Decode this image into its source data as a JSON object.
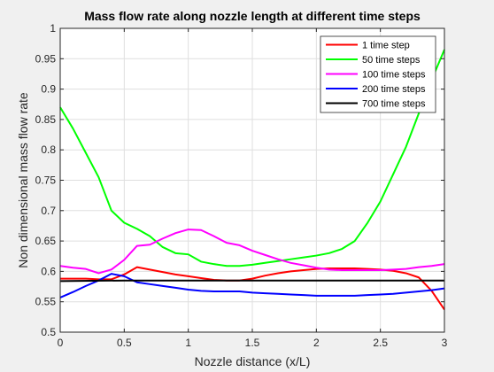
{
  "chart_data": {
    "type": "line",
    "title": "Mass flow rate along nozzle length at different time steps",
    "xlabel": "Nozzle distance (x/L)",
    "ylabel": "Non dimensional mass flow rate",
    "xlim": [
      0,
      3
    ],
    "ylim": [
      0.5,
      1
    ],
    "xticks": [
      0,
      0.5,
      1,
      1.5,
      2,
      2.5,
      3
    ],
    "xtick_labels": [
      "0",
      "0.5",
      "1",
      "1.5",
      "2",
      "2.5",
      "3"
    ],
    "yticks": [
      0.5,
      0.55,
      0.6,
      0.65,
      0.7,
      0.75,
      0.8,
      0.85,
      0.9,
      0.95,
      1
    ],
    "ytick_labels": [
      "0.5",
      "0.55",
      "0.6",
      "0.65",
      "0.7",
      "0.75",
      "0.8",
      "0.85",
      "0.9",
      "0.95",
      "1"
    ],
    "grid": true,
    "legend_position": "top-right",
    "series": [
      {
        "name": "1 time step",
        "color": "#ff0000",
        "x": [
          0,
          0.1,
          0.2,
          0.3,
          0.4,
          0.5,
          0.6,
          0.7,
          0.8,
          0.9,
          1.0,
          1.1,
          1.2,
          1.3,
          1.4,
          1.5,
          1.6,
          1.7,
          1.8,
          1.9,
          2.0,
          2.1,
          2.2,
          2.3,
          2.4,
          2.5,
          2.6,
          2.7,
          2.8,
          2.9,
          3.0
        ],
        "y": [
          0.588,
          0.588,
          0.588,
          0.587,
          0.587,
          0.595,
          0.607,
          0.603,
          0.599,
          0.595,
          0.592,
          0.589,
          0.586,
          0.585,
          0.585,
          0.588,
          0.593,
          0.597,
          0.6,
          0.602,
          0.604,
          0.605,
          0.605,
          0.605,
          0.604,
          0.603,
          0.601,
          0.597,
          0.59,
          0.568,
          0.537
        ]
      },
      {
        "name": "50 time steps",
        "color": "#00ff00",
        "x": [
          0,
          0.1,
          0.2,
          0.3,
          0.4,
          0.5,
          0.6,
          0.7,
          0.8,
          0.9,
          1.0,
          1.1,
          1.2,
          1.3,
          1.4,
          1.5,
          1.6,
          1.7,
          1.8,
          1.9,
          2.0,
          2.1,
          2.2,
          2.3,
          2.4,
          2.5,
          2.6,
          2.7,
          2.8,
          2.9,
          3.0
        ],
        "y": [
          0.87,
          0.835,
          0.795,
          0.755,
          0.7,
          0.68,
          0.67,
          0.658,
          0.64,
          0.63,
          0.628,
          0.616,
          0.612,
          0.609,
          0.609,
          0.611,
          0.614,
          0.617,
          0.62,
          0.623,
          0.626,
          0.63,
          0.637,
          0.65,
          0.68,
          0.715,
          0.76,
          0.805,
          0.86,
          0.915,
          0.965
        ]
      },
      {
        "name": "100 time steps",
        "color": "#ff00ff",
        "x": [
          0,
          0.1,
          0.2,
          0.3,
          0.4,
          0.5,
          0.6,
          0.7,
          0.8,
          0.9,
          1.0,
          1.1,
          1.2,
          1.3,
          1.4,
          1.5,
          1.6,
          1.7,
          1.8,
          1.9,
          2.0,
          2.1,
          2.2,
          2.3,
          2.4,
          2.5,
          2.6,
          2.7,
          2.8,
          2.9,
          3.0
        ],
        "y": [
          0.609,
          0.606,
          0.604,
          0.597,
          0.603,
          0.619,
          0.642,
          0.644,
          0.654,
          0.663,
          0.669,
          0.668,
          0.658,
          0.647,
          0.643,
          0.634,
          0.627,
          0.62,
          0.614,
          0.61,
          0.606,
          0.603,
          0.602,
          0.602,
          0.602,
          0.602,
          0.603,
          0.604,
          0.607,
          0.609,
          0.612
        ]
      },
      {
        "name": "200 time steps",
        "color": "#0000ff",
        "x": [
          0,
          0.1,
          0.2,
          0.3,
          0.4,
          0.5,
          0.6,
          0.7,
          0.8,
          0.9,
          1.0,
          1.1,
          1.2,
          1.3,
          1.4,
          1.5,
          1.6,
          1.7,
          1.8,
          1.9,
          2.0,
          2.1,
          2.2,
          2.3,
          2.4,
          2.5,
          2.6,
          2.7,
          2.8,
          2.9,
          3.0
        ],
        "y": [
          0.557,
          0.566,
          0.576,
          0.585,
          0.596,
          0.592,
          0.582,
          0.579,
          0.576,
          0.573,
          0.57,
          0.568,
          0.567,
          0.567,
          0.567,
          0.565,
          0.564,
          0.563,
          0.562,
          0.561,
          0.56,
          0.56,
          0.56,
          0.56,
          0.561,
          0.562,
          0.563,
          0.565,
          0.567,
          0.569,
          0.572
        ]
      },
      {
        "name": "700 time steps",
        "color": "#000000",
        "x": [
          0,
          0.5,
          1.0,
          1.5,
          2.0,
          2.5,
          3.0
        ],
        "y": [
          0.584,
          0.585,
          0.585,
          0.585,
          0.585,
          0.585,
          0.585
        ]
      }
    ]
  }
}
